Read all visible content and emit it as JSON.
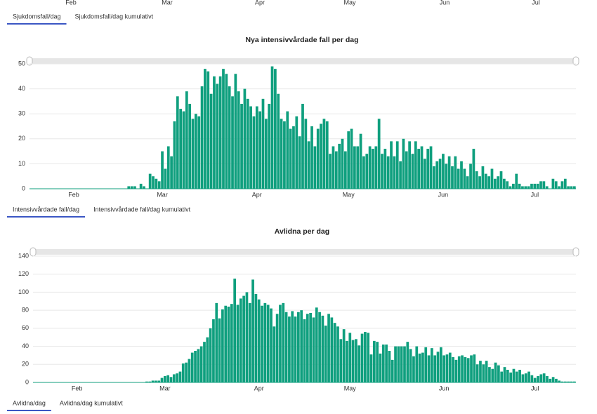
{
  "cutoff_chart": {
    "categories": [
      "Feb",
      "Mar",
      "Apr",
      "May",
      "Jun",
      "Jul"
    ],
    "tabs": [
      "Sjukdomsfall/dag",
      "Sjukdomsfall/dag kumulativt"
    ],
    "active_tab": 0
  },
  "chart_data": [
    {
      "type": "bar",
      "title": "Nya intensivvårdade fall per dag",
      "color": "#0f9f7e",
      "grid": true,
      "ylim": [
        0,
        50
      ],
      "yticks": [
        0,
        10,
        20,
        30,
        40,
        50
      ],
      "tabs": [
        "Intensivvårdade fall/dag",
        "Intensivvårdade fall/dag kumulativt"
      ],
      "active_tab": 0,
      "categories": [
        null,
        null,
        null,
        null,
        null,
        null,
        null,
        null,
        null,
        null,
        null,
        null,
        null,
        null,
        "Feb",
        null,
        null,
        null,
        null,
        null,
        null,
        null,
        null,
        null,
        null,
        null,
        null,
        null,
        null,
        null,
        null,
        null,
        null,
        null,
        null,
        null,
        null,
        null,
        null,
        null,
        null,
        null,
        null,
        "Mar",
        null,
        null,
        null,
        null,
        null,
        null,
        null,
        null,
        null,
        null,
        null,
        null,
        null,
        null,
        null,
        null,
        null,
        null,
        null,
        null,
        null,
        null,
        null,
        null,
        null,
        null,
        null,
        null,
        null,
        null,
        "Apr",
        null,
        null,
        null,
        null,
        null,
        null,
        null,
        null,
        null,
        null,
        null,
        null,
        null,
        null,
        null,
        null,
        null,
        null,
        null,
        null,
        null,
        null,
        null,
        null,
        null,
        null,
        null,
        null,
        null,
        "May",
        null,
        null,
        null,
        null,
        null,
        null,
        null,
        null,
        null,
        null,
        null,
        null,
        null,
        null,
        null,
        null,
        null,
        null,
        null,
        null,
        null,
        null,
        null,
        null,
        null,
        null,
        null,
        null,
        null,
        null,
        "Jun",
        null,
        null,
        null,
        null,
        null,
        null,
        null,
        null,
        null,
        null,
        null,
        null,
        null,
        null,
        null,
        null,
        null,
        null,
        null,
        null,
        null,
        null,
        null,
        null,
        null,
        null,
        null,
        null,
        null,
        "Jul",
        null,
        null,
        null,
        null,
        null,
        null,
        null,
        null,
        null,
        null,
        null,
        null,
        null
      ],
      "values": [
        0,
        0,
        0,
        0,
        0,
        0,
        0,
        0,
        0,
        0,
        0,
        0,
        0,
        0,
        0,
        0,
        0,
        0,
        0,
        0,
        0,
        0,
        0,
        0,
        0,
        0,
        0,
        0,
        0,
        0,
        0,
        0,
        1,
        1,
        1,
        0,
        2,
        1,
        0,
        6,
        5,
        4,
        3,
        15,
        8,
        17,
        13,
        27,
        37,
        32,
        31,
        39,
        34,
        28,
        30,
        29,
        41,
        48,
        47,
        38,
        45,
        42,
        45,
        48,
        46,
        41,
        37,
        46,
        39,
        34,
        40,
        36,
        33,
        29,
        33,
        31,
        36,
        28,
        34,
        49,
        48,
        38,
        28,
        27,
        31,
        24,
        25,
        29,
        21,
        34,
        28,
        19,
        25,
        17,
        24,
        26,
        28,
        27,
        14,
        17,
        15,
        18,
        20,
        15,
        23,
        24,
        17,
        17,
        22,
        13,
        14,
        17,
        16,
        17,
        28,
        14,
        16,
        13,
        19,
        13,
        19,
        11,
        20,
        15,
        19,
        14,
        19,
        16,
        17,
        12,
        16,
        17,
        9,
        11,
        12,
        14,
        10,
        13,
        9,
        13,
        8,
        11,
        8,
        5,
        10,
        16,
        7,
        5,
        9,
        6,
        5,
        8,
        4,
        5,
        7,
        4,
        3,
        1,
        2,
        6,
        2,
        1,
        1,
        1,
        2,
        2,
        2,
        3,
        3,
        1,
        0,
        4,
        3,
        1,
        3,
        4,
        1,
        1,
        1
      ]
    },
    {
      "type": "bar",
      "title": "Avlidna per dag",
      "color": "#0f9f7e",
      "grid": true,
      "ylim": [
        0,
        140
      ],
      "yticks": [
        0,
        20,
        40,
        60,
        80,
        100,
        120,
        140
      ],
      "tabs": [
        "Avlidna/dag",
        "Avlidna/dag kumulativt"
      ],
      "active_tab": 0,
      "categories": [
        null,
        null,
        null,
        null,
        null,
        null,
        null,
        null,
        null,
        null,
        null,
        null,
        null,
        null,
        "Feb",
        null,
        null,
        null,
        null,
        null,
        null,
        null,
        null,
        null,
        null,
        null,
        null,
        null,
        null,
        null,
        null,
        null,
        null,
        null,
        null,
        null,
        null,
        null,
        null,
        null,
        null,
        null,
        null,
        "Mar",
        null,
        null,
        null,
        null,
        null,
        null,
        null,
        null,
        null,
        null,
        null,
        null,
        null,
        null,
        null,
        null,
        null,
        null,
        null,
        null,
        null,
        null,
        null,
        null,
        null,
        null,
        null,
        null,
        null,
        null,
        "Apr",
        null,
        null,
        null,
        null,
        null,
        null,
        null,
        null,
        null,
        null,
        null,
        null,
        null,
        null,
        null,
        null,
        null,
        null,
        null,
        null,
        null,
        null,
        null,
        null,
        null,
        null,
        null,
        null,
        null,
        "May",
        null,
        null,
        null,
        null,
        null,
        null,
        null,
        null,
        null,
        null,
        null,
        null,
        null,
        null,
        null,
        null,
        null,
        null,
        null,
        null,
        null,
        null,
        null,
        null,
        null,
        null,
        null,
        null,
        null,
        null,
        "Jun",
        null,
        null,
        null,
        null,
        null,
        null,
        null,
        null,
        null,
        null,
        null,
        null,
        null,
        null,
        null,
        null,
        null,
        null,
        null,
        null,
        null,
        null,
        null,
        null,
        null,
        null,
        null,
        null,
        null,
        "Jul",
        null,
        null,
        null,
        null,
        null,
        null,
        null,
        null,
        null,
        null,
        null,
        null,
        null
      ],
      "values": [
        0,
        0,
        0,
        0,
        0,
        0,
        0,
        0,
        0,
        0,
        0,
        0,
        0,
        0,
        0,
        0,
        0,
        0,
        0,
        0,
        0,
        0,
        0,
        0,
        0,
        0,
        0,
        0,
        0,
        0,
        0,
        0,
        0,
        0,
        0,
        0,
        0,
        1,
        1,
        2,
        2,
        2,
        5,
        7,
        8,
        6,
        9,
        10,
        12,
        21,
        22,
        26,
        33,
        35,
        37,
        40,
        45,
        50,
        60,
        70,
        88,
        71,
        81,
        85,
        84,
        87,
        115,
        86,
        93,
        96,
        100,
        88,
        114,
        98,
        92,
        85,
        88,
        86,
        82,
        62,
        76,
        86,
        88,
        78,
        73,
        79,
        73,
        78,
        80,
        70,
        76,
        77,
        72,
        83,
        78,
        74,
        63,
        76,
        72,
        66,
        62,
        48,
        59,
        46,
        55,
        47,
        48,
        41,
        54,
        56,
        55,
        31,
        46,
        45,
        32,
        42,
        42,
        35,
        25,
        40,
        40,
        40,
        40,
        45,
        37,
        29,
        40,
        32,
        33,
        39,
        30,
        38,
        30,
        34,
        39,
        30,
        31,
        33,
        28,
        25,
        29,
        30,
        28,
        27,
        30,
        31,
        20,
        24,
        20,
        24,
        17,
        15,
        22,
        19,
        12,
        17,
        14,
        11,
        15,
        12,
        14,
        9,
        10,
        12,
        8,
        5,
        7,
        9,
        10,
        7,
        4,
        6,
        4,
        2,
        1,
        1,
        1,
        1,
        1
      ]
    }
  ]
}
